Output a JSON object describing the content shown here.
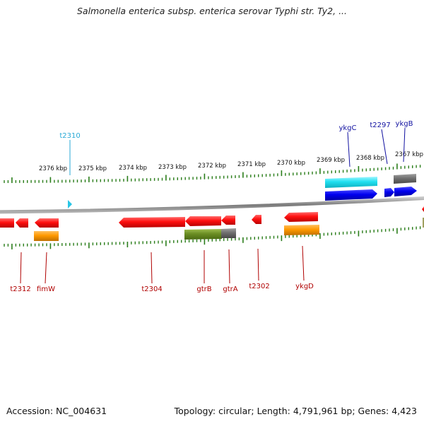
{
  "title": "Salmonella enterica subsp. enterica serovar Typhi str. Ty2, ...",
  "footer": {
    "accession": "Accession: NC_004631",
    "stats": "Topology: circular; Length: 4,791,961 bp; Genes: 4,423"
  },
  "scale_labels": [
    "2376 kbp",
    "2375 kbp",
    "2374 kbp",
    "2373 kbp",
    "2372 kbp",
    "2371 kbp",
    "2370 kbp",
    "2369 kbp",
    "2368 kbp",
    "2367 kbp"
  ],
  "gene_labels": {
    "top": [
      {
        "text": "t2310",
        "color": "#29a9d6"
      },
      {
        "text": "ykgC",
        "color": "#1010a0"
      },
      {
        "text": "t2297",
        "color": "#1010a0"
      },
      {
        "text": "ykgB",
        "color": "#1010a0"
      }
    ],
    "bottom": [
      {
        "text": "t2312",
        "color": "#b00000"
      },
      {
        "text": "fimW",
        "color": "#b00000"
      },
      {
        "text": "t2304",
        "color": "#b00000"
      },
      {
        "text": "gtrB",
        "color": "#b00000"
      },
      {
        "text": "gtrA",
        "color": "#b00000"
      },
      {
        "text": "t2302",
        "color": "#b00000"
      },
      {
        "text": "ykgD",
        "color": "#b00000"
      }
    ]
  },
  "colors": {
    "cds_forward": "#1a1aff",
    "cds_reverse": "#ff1a1a",
    "rna": "#33ddee",
    "orange_feature": "#ff9900",
    "olive_feature": "#6b8e23",
    "gray_feature": "#707070",
    "backbone": "#8a8a8a",
    "ticks": "#2a7d1a"
  }
}
